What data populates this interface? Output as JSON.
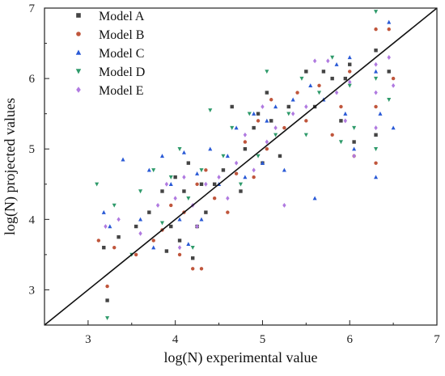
{
  "chart_data": {
    "type": "scatter",
    "title": "",
    "xlabel": "log(N) experimental value",
    "ylabel": "log(N) projected values",
    "xlim": [
      2.5,
      7
    ],
    "ylim": [
      2.5,
      7
    ],
    "xticks": [
      "3",
      "4",
      "5",
      "6",
      "7"
    ],
    "yticks": [
      "3",
      "4",
      "5",
      "6",
      "7"
    ],
    "grid": false,
    "legend_position": "top-left",
    "reference_line": {
      "type": "identity",
      "color": "#111111"
    },
    "series": [
      {
        "name": "Model A",
        "marker": "square",
        "color": "#444444",
        "points": [
          [
            3.18,
            3.6
          ],
          [
            3.22,
            2.85
          ],
          [
            3.35,
            3.75
          ],
          [
            3.55,
            3.9
          ],
          [
            3.7,
            4.1
          ],
          [
            3.85,
            4.4
          ],
          [
            3.9,
            3.55
          ],
          [
            3.95,
            3.9
          ],
          [
            4.0,
            4.6
          ],
          [
            4.05,
            3.7
          ],
          [
            4.1,
            4.4
          ],
          [
            4.15,
            4.8
          ],
          [
            4.2,
            3.45
          ],
          [
            4.25,
            3.9
          ],
          [
            4.3,
            4.5
          ],
          [
            4.35,
            4.1
          ],
          [
            4.45,
            4.5
          ],
          [
            4.55,
            4.7
          ],
          [
            4.65,
            5.6
          ],
          [
            4.75,
            4.4
          ],
          [
            4.8,
            5.0
          ],
          [
            4.9,
            5.3
          ],
          [
            4.95,
            5.5
          ],
          [
            5.0,
            4.8
          ],
          [
            5.05,
            5.8
          ],
          [
            5.1,
            5.4
          ],
          [
            5.2,
            4.9
          ],
          [
            5.3,
            5.6
          ],
          [
            5.5,
            6.1
          ],
          [
            5.6,
            5.6
          ],
          [
            5.7,
            6.1
          ],
          [
            5.8,
            6.0
          ],
          [
            5.9,
            5.4
          ],
          [
            5.95,
            6.0
          ],
          [
            6.0,
            6.2
          ],
          [
            6.05,
            5.1
          ],
          [
            6.3,
            6.4
          ],
          [
            6.3,
            5.2
          ],
          [
            6.45,
            6.1
          ]
        ]
      },
      {
        "name": "Model B",
        "marker": "circle",
        "color": "#c0563c",
        "points": [
          [
            3.12,
            3.7
          ],
          [
            3.22,
            3.05
          ],
          [
            3.3,
            3.6
          ],
          [
            3.55,
            3.5
          ],
          [
            3.75,
            3.7
          ],
          [
            3.85,
            3.85
          ],
          [
            3.95,
            4.2
          ],
          [
            4.05,
            3.5
          ],
          [
            4.1,
            4.1
          ],
          [
            4.2,
            3.3
          ],
          [
            4.25,
            4.5
          ],
          [
            4.3,
            3.3
          ],
          [
            4.35,
            4.7
          ],
          [
            4.45,
            4.3
          ],
          [
            4.6,
            4.1
          ],
          [
            4.7,
            4.65
          ],
          [
            4.8,
            5.1
          ],
          [
            4.9,
            4.6
          ],
          [
            4.95,
            5.4
          ],
          [
            5.05,
            5.0
          ],
          [
            5.1,
            5.7
          ],
          [
            5.25,
            5.3
          ],
          [
            5.4,
            5.8
          ],
          [
            5.5,
            5.4
          ],
          [
            5.65,
            5.9
          ],
          [
            5.8,
            5.2
          ],
          [
            5.9,
            5.6
          ],
          [
            6.0,
            6.1
          ],
          [
            6.05,
            4.9
          ],
          [
            6.3,
            6.7
          ],
          [
            6.3,
            5.6
          ],
          [
            6.3,
            4.8
          ],
          [
            6.45,
            6.7
          ],
          [
            6.5,
            6.0
          ]
        ]
      },
      {
        "name": "Model C",
        "marker": "triangle-up",
        "color": "#2a5ad6",
        "points": [
          [
            3.18,
            4.1
          ],
          [
            3.25,
            3.9
          ],
          [
            3.4,
            4.85
          ],
          [
            3.6,
            4.0
          ],
          [
            3.7,
            4.7
          ],
          [
            3.75,
            3.6
          ],
          [
            3.85,
            4.9
          ],
          [
            3.95,
            4.5
          ],
          [
            4.05,
            4.0
          ],
          [
            4.1,
            4.95
          ],
          [
            4.15,
            3.65
          ],
          [
            4.25,
            4.65
          ],
          [
            4.3,
            4.0
          ],
          [
            4.4,
            5.0
          ],
          [
            4.5,
            4.5
          ],
          [
            4.6,
            4.9
          ],
          [
            4.7,
            5.3
          ],
          [
            4.8,
            4.6
          ],
          [
            4.9,
            5.5
          ],
          [
            5.0,
            4.8
          ],
          [
            5.05,
            5.4
          ],
          [
            5.15,
            5.6
          ],
          [
            5.25,
            4.7
          ],
          [
            5.35,
            5.7
          ],
          [
            5.55,
            5.9
          ],
          [
            5.6,
            4.3
          ],
          [
            5.7,
            5.7
          ],
          [
            5.85,
            6.2
          ],
          [
            5.95,
            5.5
          ],
          [
            6.0,
            6.3
          ],
          [
            6.05,
            5.0
          ],
          [
            6.3,
            4.6
          ],
          [
            6.3,
            6.1
          ],
          [
            6.35,
            5.5
          ],
          [
            6.45,
            6.8
          ],
          [
            6.5,
            5.3
          ]
        ]
      },
      {
        "name": "Model D",
        "marker": "triangle-down",
        "color": "#2e9a6a",
        "points": [
          [
            3.1,
            4.5
          ],
          [
            3.22,
            2.6
          ],
          [
            3.3,
            4.2
          ],
          [
            3.5,
            3.5
          ],
          [
            3.6,
            4.4
          ],
          [
            3.75,
            4.7
          ],
          [
            3.85,
            3.95
          ],
          [
            3.95,
            4.6
          ],
          [
            4.05,
            5.0
          ],
          [
            4.15,
            4.3
          ],
          [
            4.2,
            3.6
          ],
          [
            4.3,
            4.7
          ],
          [
            4.4,
            5.55
          ],
          [
            4.55,
            4.9
          ],
          [
            4.65,
            5.3
          ],
          [
            4.75,
            4.5
          ],
          [
            4.85,
            5.5
          ],
          [
            4.95,
            4.9
          ],
          [
            5.05,
            6.1
          ],
          [
            5.15,
            5.2
          ],
          [
            5.3,
            5.5
          ],
          [
            5.45,
            6.0
          ],
          [
            5.5,
            5.2
          ],
          [
            5.65,
            5.8
          ],
          [
            5.8,
            6.3
          ],
          [
            5.9,
            5.1
          ],
          [
            6.0,
            5.9
          ],
          [
            6.05,
            5.3
          ],
          [
            6.3,
            6.95
          ],
          [
            6.3,
            6.0
          ],
          [
            6.3,
            5.0
          ],
          [
            6.45,
            5.7
          ]
        ]
      },
      {
        "name": "Model E",
        "marker": "diamond",
        "color": "#b07ae0",
        "points": [
          [
            3.2,
            3.9
          ],
          [
            3.35,
            4.0
          ],
          [
            3.6,
            3.8
          ],
          [
            3.8,
            4.2
          ],
          [
            3.9,
            4.5
          ],
          [
            4.0,
            4.3
          ],
          [
            4.05,
            3.6
          ],
          [
            4.1,
            4.6
          ],
          [
            4.2,
            4.2
          ],
          [
            4.25,
            3.9
          ],
          [
            4.35,
            4.5
          ],
          [
            4.5,
            4.6
          ],
          [
            4.6,
            4.3
          ],
          [
            4.7,
            4.8
          ],
          [
            4.8,
            5.2
          ],
          [
            4.9,
            4.7
          ],
          [
            5.0,
            5.6
          ],
          [
            5.05,
            5.1
          ],
          [
            5.15,
            5.3
          ],
          [
            5.25,
            4.2
          ],
          [
            5.35,
            5.5
          ],
          [
            5.5,
            5.6
          ],
          [
            5.6,
            6.25
          ],
          [
            5.75,
            6.25
          ],
          [
            5.85,
            5.8
          ],
          [
            5.95,
            5.4
          ],
          [
            6.0,
            5.95
          ],
          [
            6.05,
            4.9
          ],
          [
            6.3,
            6.2
          ],
          [
            6.3,
            5.8
          ],
          [
            6.3,
            5.3
          ],
          [
            6.45,
            6.3
          ],
          [
            6.5,
            5.9
          ]
        ]
      }
    ]
  }
}
